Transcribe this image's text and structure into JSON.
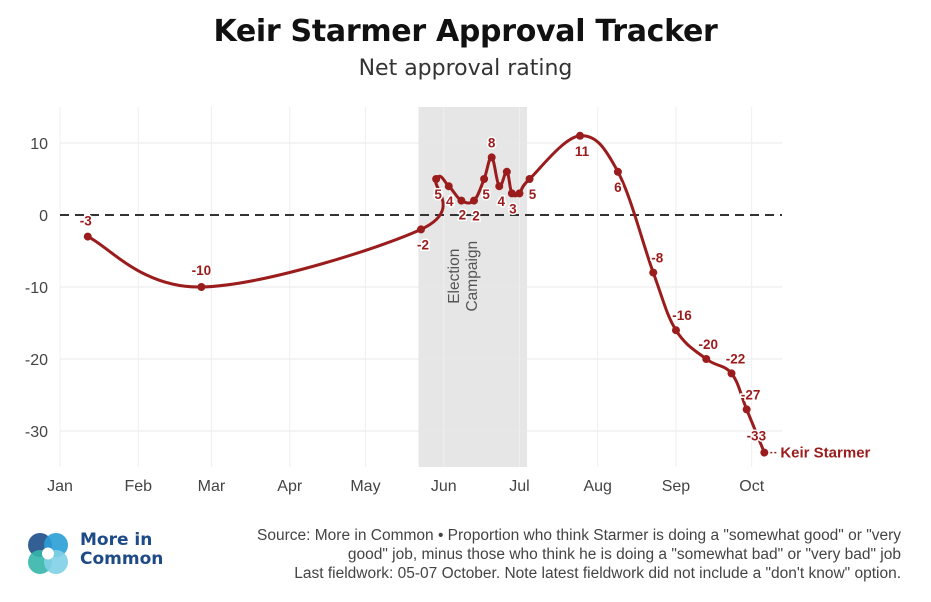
{
  "header": {
    "title": "Keir Starmer Approval Tracker",
    "subtitle": "Net approval rating"
  },
  "chart_data": {
    "type": "line",
    "title": "Keir Starmer Approval Tracker",
    "subtitle": "Net approval rating",
    "xlabel": "",
    "ylabel": "",
    "x_ticks": [
      "Jan",
      "Feb",
      "Mar",
      "Apr",
      "May",
      "Jun",
      "Jul",
      "Aug",
      "Sep",
      "Oct"
    ],
    "y_ticks": [
      10,
      0,
      -10,
      -20,
      -30
    ],
    "ylim": [
      -35,
      15
    ],
    "grid": true,
    "zero_line": "dashed",
    "shaded_region": {
      "start": "2024-05-22",
      "end": "2024-07-04",
      "label": "Election Campaign"
    },
    "series": [
      {
        "name": "Keir Starmer",
        "color": "#9b1c1c",
        "points": [
          {
            "date": "2024-01-12",
            "value": -3,
            "label": "-3"
          },
          {
            "date": "2024-02-26",
            "value": -10,
            "label": "-10"
          },
          {
            "date": "2024-05-23",
            "value": -2,
            "label": "-2"
          },
          {
            "date": "2024-05-29",
            "value": 5,
            "label": "5"
          },
          {
            "date": "2024-06-03",
            "value": 4,
            "label": "4"
          },
          {
            "date": "2024-06-08",
            "value": 2,
            "label": "2"
          },
          {
            "date": "2024-06-13",
            "value": 2,
            "label": "2"
          },
          {
            "date": "2024-06-17",
            "value": 5,
            "label": "5"
          },
          {
            "date": "2024-06-20",
            "value": 8,
            "label": "8"
          },
          {
            "date": "2024-06-23",
            "value": 4,
            "label": "4"
          },
          {
            "date": "2024-06-26",
            "value": 6,
            "label": ""
          },
          {
            "date": "2024-06-28",
            "value": 3,
            "label": "3"
          },
          {
            "date": "2024-07-01",
            "value": 3,
            "label": ""
          },
          {
            "date": "2024-07-05",
            "value": 5,
            "label": "5"
          },
          {
            "date": "2024-07-25",
            "value": 11,
            "label": "11"
          },
          {
            "date": "2024-08-09",
            "value": 6,
            "label": "6"
          },
          {
            "date": "2024-08-23",
            "value": -8,
            "label": "-8"
          },
          {
            "date": "2024-09-01",
            "value": -16,
            "label": "-16"
          },
          {
            "date": "2024-09-13",
            "value": -20,
            "label": "-20"
          },
          {
            "date": "2024-09-23",
            "value": -22,
            "label": "-22"
          },
          {
            "date": "2024-09-29",
            "value": -27,
            "label": "-27"
          },
          {
            "date": "2024-10-06",
            "value": -33,
            "label": "-33"
          }
        ]
      }
    ]
  },
  "footer": {
    "logo_text_line1": "More in",
    "logo_text_line2": "Common",
    "logo_colors": [
      "#1d4e89",
      "#2a9fd6",
      "#35b6a8",
      "#7fd0e6"
    ],
    "source_line1": "Source: More in Common • Proportion who think Starmer is doing a \"somewhat good\" or \"very",
    "source_line2": "good\" job, minus those who think he is doing a \"somewhat bad\" or \"very bad\" job",
    "source_line3": "Last fieldwork: 05-07 October. Note latest fieldwork did not include a \"don't know\" option."
  }
}
